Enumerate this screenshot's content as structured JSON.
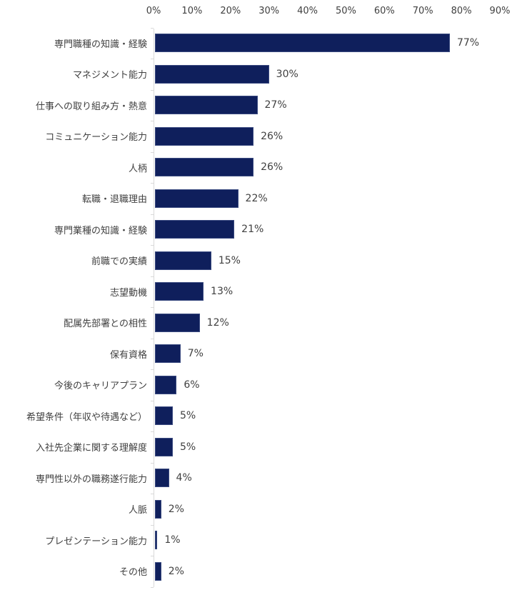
{
  "chart_data": {
    "type": "bar",
    "orientation": "horizontal",
    "title": "",
    "xlabel": "",
    "ylabel": "",
    "xlim": [
      0,
      90
    ],
    "x_ticks": [
      "0%",
      "10%",
      "20%",
      "30%",
      "40%",
      "50%",
      "60%",
      "70%",
      "80%",
      "90%"
    ],
    "grid": false,
    "legend": null,
    "bar_color": "#0f1f5c",
    "categories": [
      "専門職種の知識・経験",
      "マネジメント能力",
      "仕事への取り組み方・熱意",
      "コミュニケーション能力",
      "人柄",
      "転職・退職理由",
      "専門業種の知識・経験",
      "前職での実績",
      "志望動機",
      "配属先部署との相性",
      "保有資格",
      "今後のキャリアプラン",
      "希望条件（年収や待遇など）",
      "入社先企業に関する理解度",
      "専門性以外の職務遂行能力",
      "人脈",
      "プレゼンテーション能力",
      "その他"
    ],
    "values": [
      77,
      30,
      27,
      26,
      26,
      22,
      21,
      15,
      13,
      12,
      7,
      6,
      5,
      5,
      4,
      2,
      1,
      2
    ],
    "value_labels": [
      "77%",
      "30%",
      "27%",
      "26%",
      "26%",
      "22%",
      "21%",
      "15%",
      "13%",
      "12%",
      "7%",
      "6%",
      "5%",
      "5%",
      "4%",
      "2%",
      "1%",
      "2%"
    ]
  }
}
